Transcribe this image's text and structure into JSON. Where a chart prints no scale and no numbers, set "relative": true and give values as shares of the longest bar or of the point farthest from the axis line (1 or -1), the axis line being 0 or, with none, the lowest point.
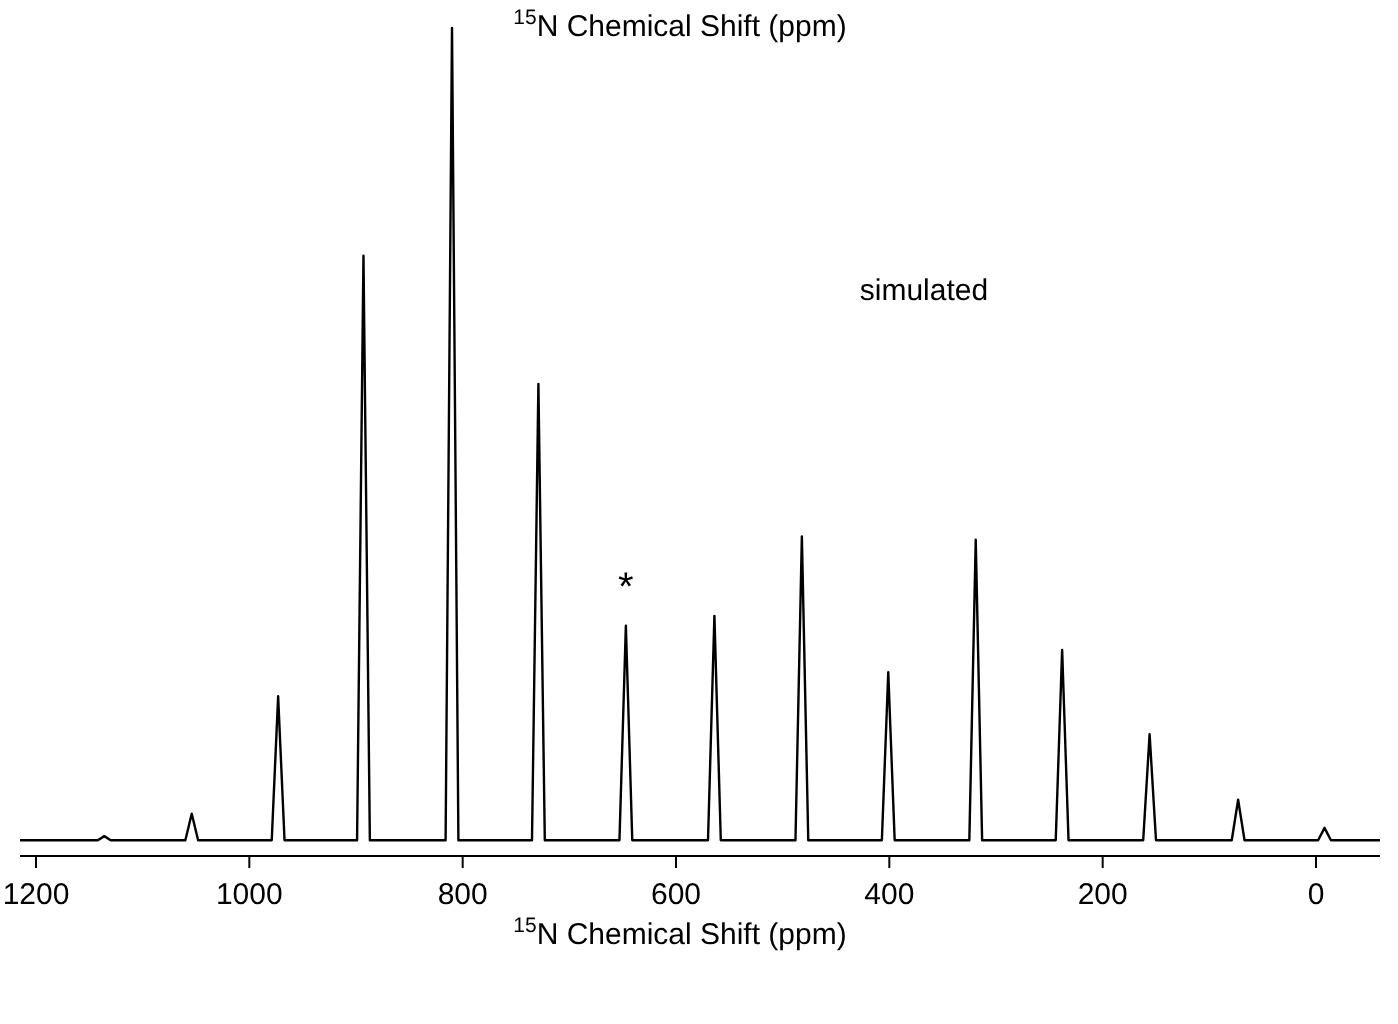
{
  "chart_data": {
    "type": "line",
    "relative": true,
    "title": "$^{15}$N Chemical Shift (ppm)",
    "xlabel": "$^{15}$N Chemical Shift (ppm)",
    "xlim": [
      1215,
      -60
    ],
    "xticks": [
      1200,
      1000,
      800,
      600,
      400,
      200,
      0
    ],
    "tick_labels": "x",
    "grid": false,
    "marker": "none",
    "line_style": "solid",
    "annotations": [
      "simulated",
      "*"
    ],
    "series": [
      {
        "color": "#000000",
        "x": [
          1215,
          1142,
          1136,
          1130,
          1060,
          1054,
          1048,
          979,
          973,
          967,
          899,
          893,
          887,
          816,
          810,
          804,
          735,
          729,
          723,
          653,
          647,
          641,
          570,
          564,
          558,
          488,
          482,
          476,
          407,
          401,
          395,
          325,
          319,
          313,
          244,
          238,
          232,
          162,
          156,
          150,
          79,
          73,
          67,
          -2,
          -8,
          -14,
          -60
        ],
        "values": [
          0.019,
          0.019,
          0.024,
          0.019,
          0.019,
          0.051,
          0.019,
          0.019,
          0.193,
          0.019,
          0.019,
          0.725,
          0.019,
          0.019,
          1,
          0.019,
          0.019,
          0.57,
          0.019,
          0.019,
          0.278,
          0.019,
          0.019,
          0.29,
          0.019,
          0.019,
          0.386,
          0.019,
          0.019,
          0.222,
          0.019,
          0.019,
          0.382,
          0.019,
          0.019,
          0.249,
          0.019,
          0.019,
          0.147,
          0.019,
          0.019,
          0.068,
          0.019,
          0.019,
          0.034,
          0.019,
          0.019
        ]
      }
    ]
  }
}
